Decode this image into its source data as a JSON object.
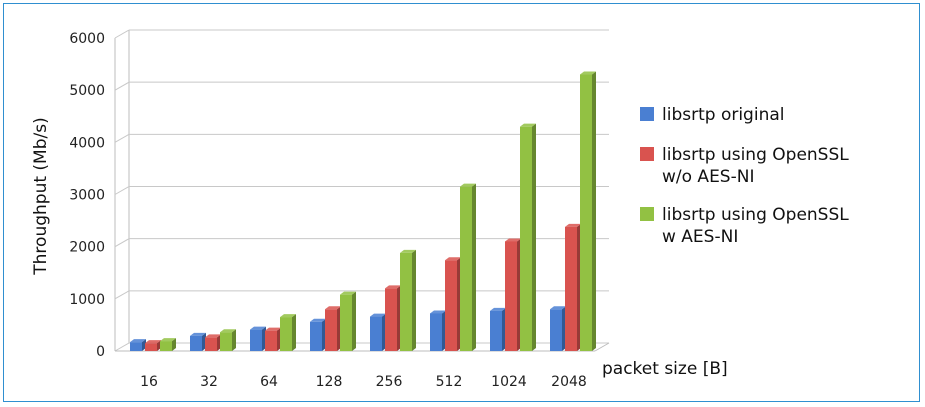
{
  "chart_data": {
    "type": "bar",
    "categories": [
      "16",
      "32",
      "64",
      "128",
      "256",
      "512",
      "1024",
      "2048"
    ],
    "series": [
      {
        "name": "libsrtp original",
        "values": [
          170,
          290,
          410,
          560,
          660,
          720,
          770,
          800
        ],
        "color": "#4a7fd2"
      },
      {
        "name": "libsrtp using OpenSSL w/o AES-NI",
        "values": [
          150,
          260,
          390,
          800,
          1200,
          1740,
          2100,
          2380
        ],
        "color": "#d9534f"
      },
      {
        "name": "libsrtp using OpenSSL w AES-NI",
        "values": [
          190,
          360,
          650,
          1080,
          1880,
          3150,
          4300,
          5300
        ],
        "color": "#92c143"
      }
    ],
    "legend_lines": [
      [
        "libsrtp original"
      ],
      [
        "libsrtp using OpenSSL",
        "w/o AES-NI"
      ],
      [
        "libsrtp using OpenSSL",
        "w AES-NI"
      ]
    ],
    "ylabel": "Throughput (Mb/s)",
    "xlabel": "packet size [B]",
    "ylim": [
      0,
      6000
    ],
    "yticks": [
      0,
      1000,
      2000,
      3000,
      4000,
      5000,
      6000
    ],
    "grid": true,
    "legend_position": "right"
  }
}
